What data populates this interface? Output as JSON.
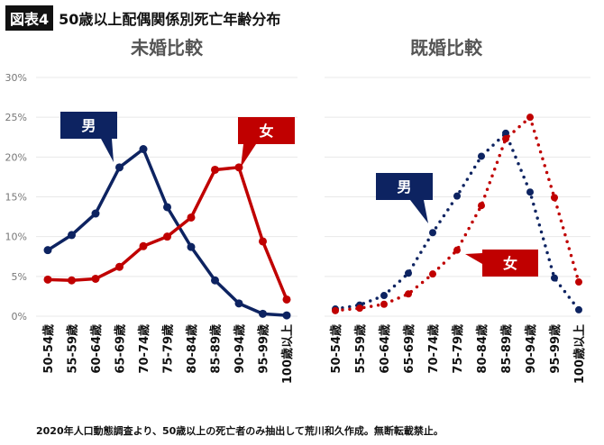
{
  "header": {
    "badge": "図表4",
    "title": "50歳以上配偶関係別死亡年齢分布"
  },
  "footer": "2020年人口動態調査より、50歳以上の死亡者のみ抽出して荒川和久作成。無断転載禁止。",
  "colors": {
    "male": "#0d2361",
    "female": "#c00000",
    "grid": "#e8e8e8"
  },
  "chart_data": [
    {
      "type": "line",
      "title": "未婚比較",
      "line_style": "solid",
      "categories": [
        "50-54歳",
        "55-59歳",
        "60-64歳",
        "65-69歳",
        "70-74歳",
        "75-79歳",
        "80-84歳",
        "85-89歳",
        "90-94歳",
        "95-99歳",
        "100歳以上"
      ],
      "yticks": [
        "0%",
        "5%",
        "10%",
        "15%",
        "20%",
        "25%",
        "30%"
      ],
      "ylim": [
        0,
        30
      ],
      "grid": true,
      "series": [
        {
          "name": "男",
          "values": [
            8.3,
            10.2,
            12.9,
            18.7,
            21.0,
            13.7,
            8.7,
            4.5,
            1.6,
            0.3,
            0.1
          ]
        },
        {
          "name": "女",
          "values": [
            4.6,
            4.5,
            4.7,
            6.2,
            8.8,
            10.0,
            12.4,
            18.4,
            18.7,
            9.4,
            2.1
          ]
        }
      ]
    },
    {
      "type": "line",
      "title": "既婚比較",
      "line_style": "dotted",
      "categories": [
        "50-54歳",
        "55-59歳",
        "60-64歳",
        "65-69歳",
        "70-74歳",
        "75-79歳",
        "80-84歳",
        "85-89歳",
        "90-94歳",
        "95-99歳",
        "100歳以上"
      ],
      "ylim": [
        0,
        30
      ],
      "grid": true,
      "series": [
        {
          "name": "男",
          "values": [
            0.9,
            1.4,
            2.6,
            5.4,
            10.5,
            15.1,
            20.1,
            23.0,
            15.6,
            4.8,
            0.8
          ]
        },
        {
          "name": "女",
          "values": [
            0.7,
            1.0,
            1.5,
            2.8,
            5.3,
            8.3,
            13.9,
            22.3,
            25.0,
            14.9,
            4.3
          ]
        }
      ]
    }
  ]
}
